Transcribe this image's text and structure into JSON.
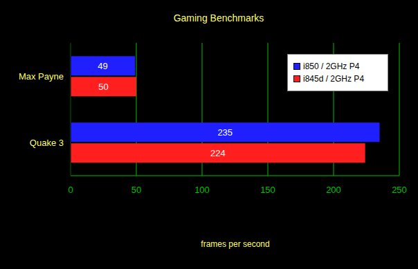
{
  "chart_data": {
    "type": "bar",
    "title": "Gaming Benchmarks",
    "orientation": "horizontal",
    "categories": [
      "Max Payne",
      "Quake 3"
    ],
    "series": [
      {
        "name": "i850 / 2GHz P4",
        "color": "#1f1fff",
        "values": [
          49,
          235
        ]
      },
      {
        "name": "i845d / 2GHz P4",
        "color": "#ff1f1f",
        "values": [
          50,
          224
        ]
      }
    ],
    "xlabel": "frames per second",
    "xlim": [
      0,
      250
    ],
    "xticks": [
      0,
      50,
      100,
      150,
      200,
      250
    ],
    "grid": true,
    "legend": "upper right",
    "data_labels": true
  }
}
